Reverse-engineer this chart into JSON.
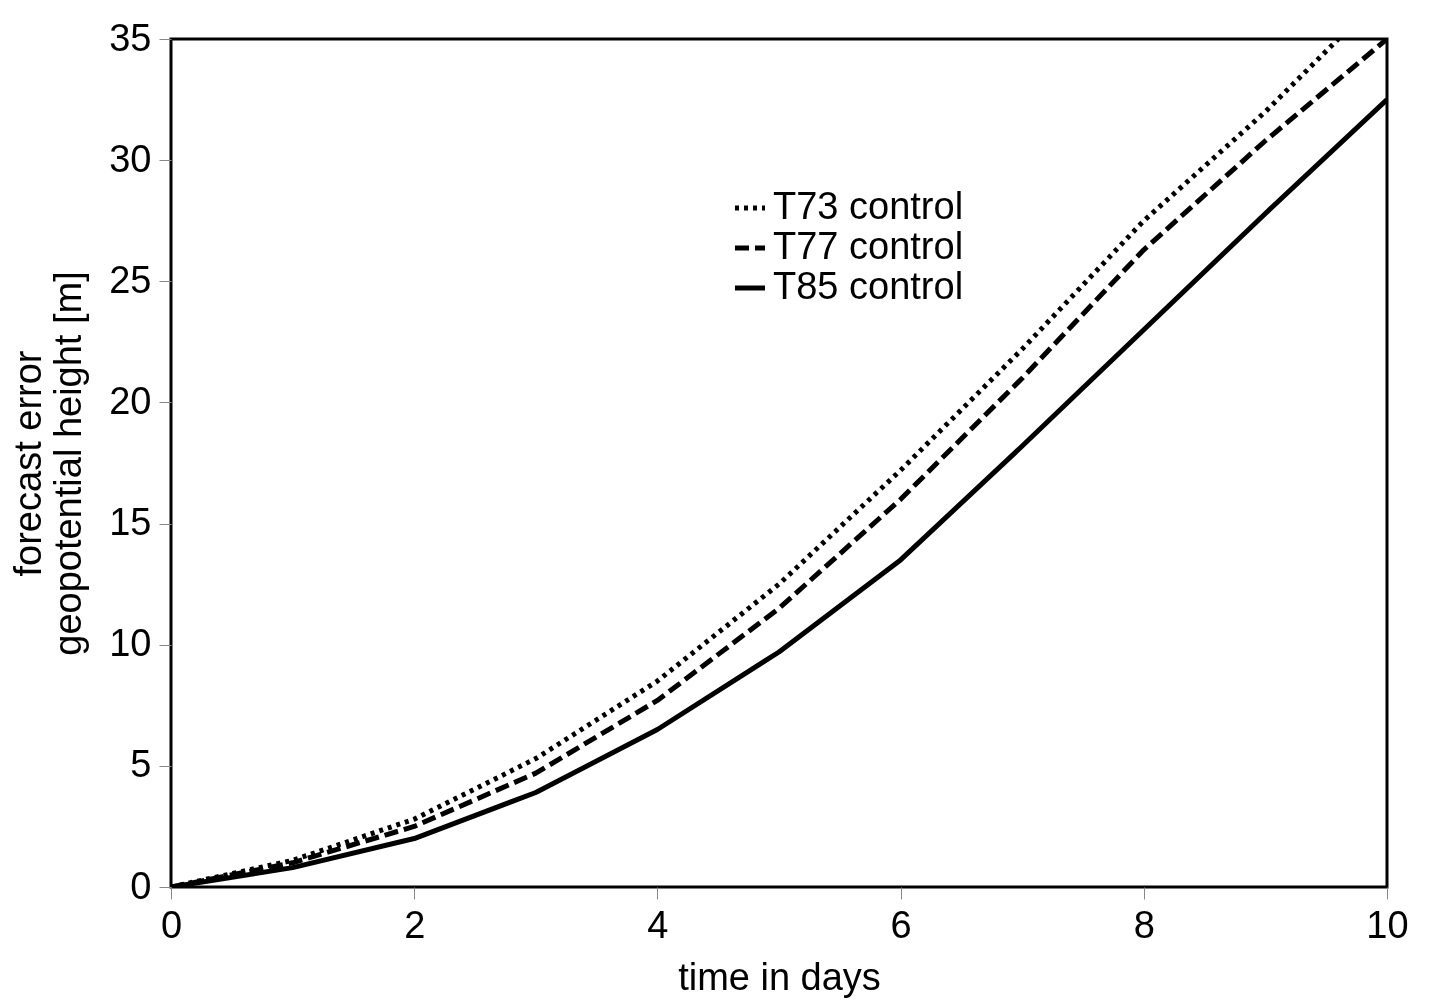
{
  "chart_data": {
    "type": "line",
    "xlabel": "time in days",
    "ylabel": "forecast error\ngeopotential height [m]",
    "x": [
      0,
      1,
      2,
      3,
      4,
      5,
      6,
      7,
      8,
      9,
      10
    ],
    "series": [
      {
        "name": "T73 control",
        "color": "#000000",
        "line_style": "dotted",
        "x": [
          0,
          1,
          2,
          3,
          4,
          5,
          6,
          7,
          8,
          9,
          9.6
        ],
        "values": [
          0,
          1.1,
          2.8,
          5.3,
          8.5,
          12.5,
          17.2,
          22.2,
          27.5,
          32.0,
          35
        ]
      },
      {
        "name": "T77 control",
        "color": "#000000",
        "line_style": "dashed",
        "values": [
          0,
          1.0,
          2.5,
          4.7,
          7.7,
          11.5,
          16.0,
          21.0,
          26.3,
          30.8,
          35.0
        ]
      },
      {
        "name": "T85 control",
        "color": "#000000",
        "line_style": "solid",
        "values": [
          0,
          0.8,
          2.0,
          3.9,
          6.5,
          9.7,
          13.5,
          18.2,
          23.0,
          27.8,
          32.5
        ]
      }
    ],
    "xlim": [
      0,
      10
    ],
    "xticks": [
      0,
      2,
      4,
      6,
      8,
      10
    ],
    "ylim": [
      0,
      35
    ],
    "yticks": [
      0,
      5,
      10,
      15,
      20,
      25,
      30,
      35
    ],
    "grid": false,
    "legend": "top",
    "marker": "none"
  }
}
